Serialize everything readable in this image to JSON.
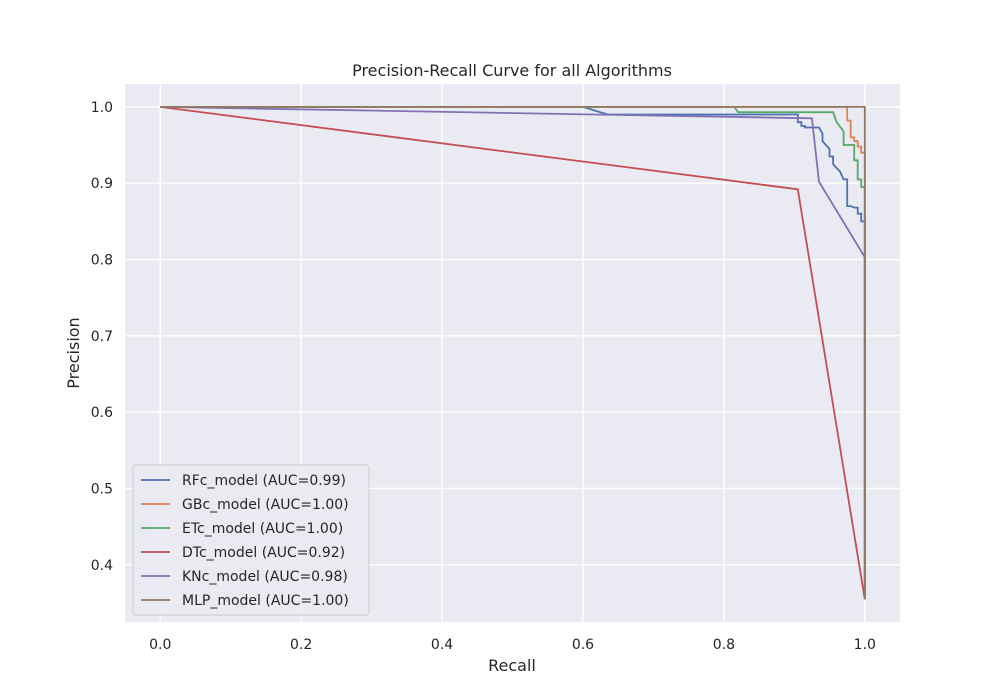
{
  "chart_data": {
    "type": "line",
    "title": "Precision-Recall Curve for all Algorithms",
    "xlabel": "Recall",
    "ylabel": "Precision",
    "xlim": [
      -0.05,
      1.05
    ],
    "ylim": [
      0.325,
      1.03
    ],
    "xticks": [
      0.0,
      0.2,
      0.4,
      0.6,
      0.8,
      1.0
    ],
    "xtick_labels": [
      "0.0",
      "0.2",
      "0.4",
      "0.6",
      "0.8",
      "1.0"
    ],
    "yticks": [
      0.4,
      0.5,
      0.6,
      0.7,
      0.8,
      0.9,
      1.0
    ],
    "ytick_labels": [
      "0.4",
      "0.5",
      "0.6",
      "0.7",
      "0.8",
      "0.9",
      "1.0"
    ],
    "grid": true,
    "legend_position": "lower-left",
    "background": "#eaeaf2",
    "grid_color": "#ffffff",
    "series": [
      {
        "name": "RFc_model (AUC=0.99)",
        "color": "#4c72b0",
        "x": [
          0.0,
          0.6,
          0.635,
          0.905,
          0.905,
          0.91,
          0.91,
          0.915,
          0.915,
          0.935,
          0.94,
          0.94,
          0.95,
          0.95,
          0.955,
          0.955,
          0.965,
          0.965,
          0.97,
          0.975,
          0.975,
          0.98,
          0.985,
          0.99,
          0.99,
          0.995,
          0.995,
          1.0,
          1.0
        ],
        "y": [
          1.0,
          1.0,
          0.99,
          0.99,
          0.98,
          0.98,
          0.975,
          0.975,
          0.973,
          0.973,
          0.965,
          0.955,
          0.945,
          0.935,
          0.935,
          0.925,
          0.915,
          0.915,
          0.905,
          0.905,
          0.87,
          0.87,
          0.868,
          0.868,
          0.86,
          0.86,
          0.85,
          0.85,
          0.355
        ]
      },
      {
        "name": "GBc_model (AUC=1.00)",
        "color": "#dd8452",
        "x": [
          0.0,
          0.975,
          0.975,
          0.98,
          0.98,
          0.985,
          0.985,
          0.99,
          0.99,
          0.995,
          0.995,
          1.0,
          1.0
        ],
        "y": [
          1.0,
          1.0,
          0.982,
          0.982,
          0.96,
          0.96,
          0.955,
          0.955,
          0.948,
          0.948,
          0.94,
          0.94,
          0.355
        ]
      },
      {
        "name": "ETc_model (AUC=1.00)",
        "color": "#55a868",
        "x": [
          0.0,
          0.815,
          0.82,
          0.955,
          0.96,
          0.97,
          0.97,
          0.985,
          0.985,
          0.99,
          0.99,
          0.995,
          0.995,
          1.0,
          1.0
        ],
        "y": [
          1.0,
          1.0,
          0.993,
          0.993,
          0.98,
          0.968,
          0.95,
          0.95,
          0.93,
          0.93,
          0.905,
          0.905,
          0.895,
          0.895,
          0.355
        ]
      },
      {
        "name": "DTc_model (AUC=0.92)",
        "color": "#c44e52",
        "x": [
          0.0,
          0.905,
          1.0
        ],
        "y": [
          1.0,
          0.892,
          0.355
        ]
      },
      {
        "name": "KNc_model (AUC=0.98)",
        "color": "#8172b3",
        "x": [
          0.0,
          0.925,
          0.935,
          1.0,
          1.0
        ],
        "y": [
          1.0,
          0.985,
          0.902,
          0.803,
          0.355
        ]
      },
      {
        "name": "MLP_model (AUC=1.00)",
        "color": "#937860",
        "x": [
          0.0,
          1.0,
          1.0
        ],
        "y": [
          1.0,
          1.0,
          0.355
        ]
      }
    ]
  }
}
